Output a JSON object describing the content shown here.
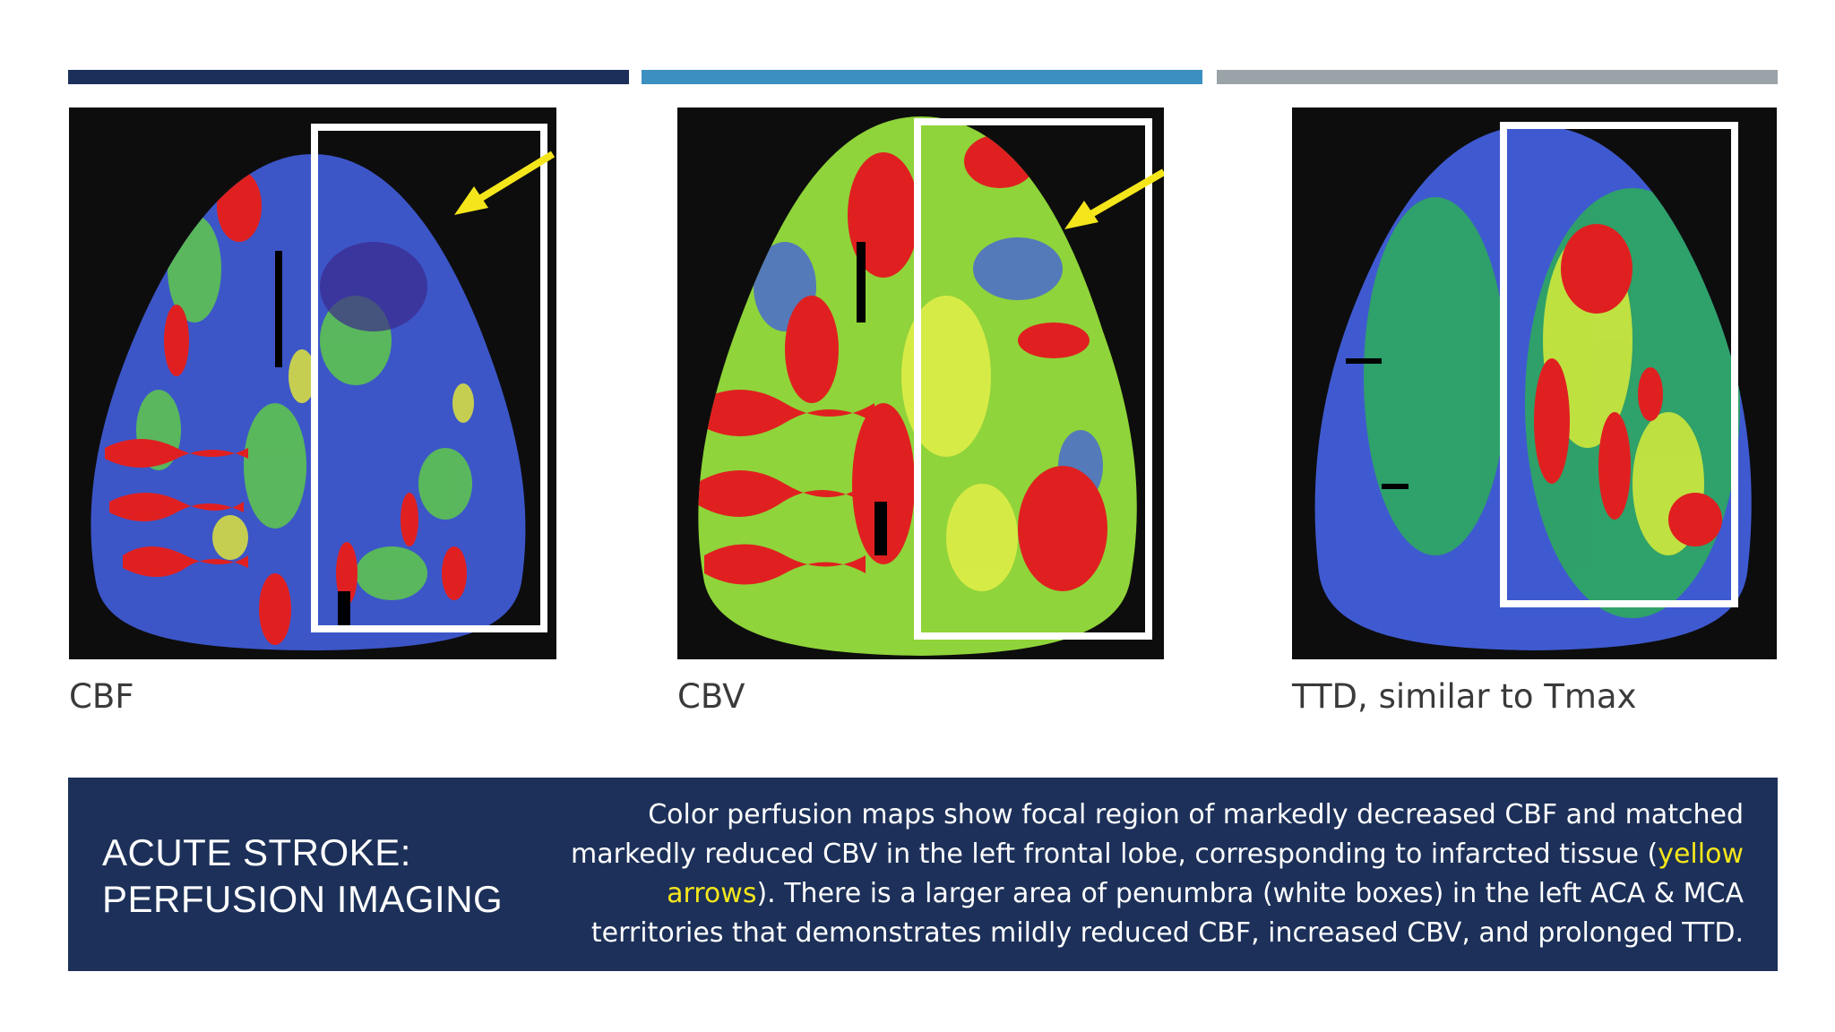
{
  "images": [
    {
      "label": "CBF",
      "has_arrow": true,
      "base_color": "#2f5bd0"
    },
    {
      "label": "CBV",
      "has_arrow": true,
      "base_color": "#8fd43a"
    },
    {
      "label": "TTD, similar to Tmax",
      "has_arrow": false,
      "base_color": "#2c9a5c"
    }
  ],
  "colors": {
    "bar_dark": "#1b2f5a",
    "bar_blue": "#3c8fc1",
    "bar_gray": "#9aa3a8",
    "footer_bg": "#1c3059",
    "highlight": "#f5e61c",
    "arrow": "#f5e61c"
  },
  "footer": {
    "title_line1": "ACUTE STROKE:",
    "title_line2": "PERFUSION IMAGING",
    "text_part1": "Color perfusion maps show focal region of markedly decreased CBF and matched markedly reduced CBV in the left frontal lobe, corresponding to infarcted tissue (",
    "text_highlight": "yellow arrows",
    "text_part2": "). There is a larger area of penumbra (white boxes) in the left ACA & MCA territories that demonstrates mildly reduced CBF, increased CBV, and prolonged TTD."
  }
}
